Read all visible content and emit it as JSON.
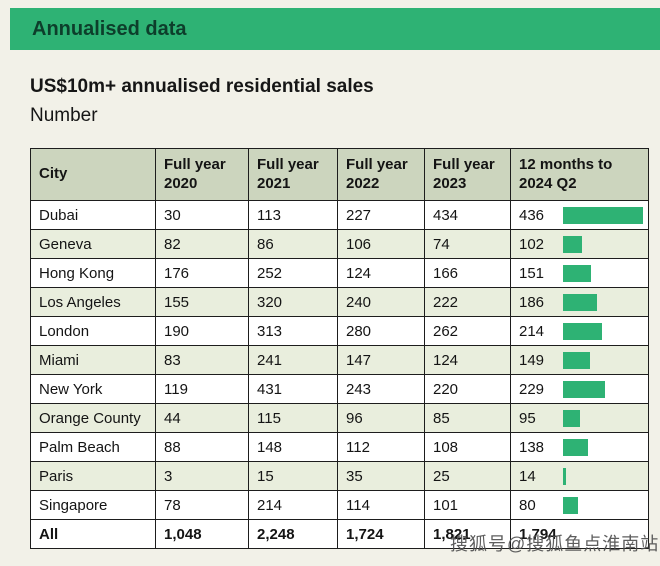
{
  "banner": {
    "title": "Annualised data"
  },
  "heading": {
    "title": "US$10m+ annualised residential sales",
    "subtitle": "Number"
  },
  "chart_data": {
    "type": "table",
    "title": "US$10m+ annualised residential sales",
    "subtitle": "Number",
    "columns": [
      "City",
      "Full year 2020",
      "Full year 2021",
      "Full year 2022",
      "Full year 2023",
      "12 months to 2024 Q2"
    ],
    "rows": [
      {
        "city": "Dubai",
        "values": [
          30,
          113,
          227,
          434,
          436
        ],
        "is_total": false
      },
      {
        "city": "Geneva",
        "values": [
          82,
          86,
          106,
          74,
          102
        ],
        "is_total": false
      },
      {
        "city": "Hong Kong",
        "values": [
          176,
          252,
          124,
          166,
          151
        ],
        "is_total": false
      },
      {
        "city": "Los Angeles",
        "values": [
          155,
          320,
          240,
          222,
          186
        ],
        "is_total": false
      },
      {
        "city": "London",
        "values": [
          190,
          313,
          280,
          262,
          214
        ],
        "is_total": false
      },
      {
        "city": "Miami",
        "values": [
          83,
          241,
          147,
          124,
          149
        ],
        "is_total": false
      },
      {
        "city": "New York",
        "values": [
          119,
          431,
          243,
          220,
          229
        ],
        "is_total": false
      },
      {
        "city": "Orange County",
        "values": [
          44,
          115,
          96,
          85,
          95
        ],
        "is_total": false
      },
      {
        "city": "Palm Beach",
        "values": [
          88,
          148,
          112,
          108,
          138
        ],
        "is_total": false
      },
      {
        "city": "Paris",
        "values": [
          3,
          15,
          35,
          25,
          14
        ],
        "is_total": false
      },
      {
        "city": "Singapore",
        "values": [
          78,
          214,
          114,
          101,
          80
        ],
        "is_total": false
      },
      {
        "city": "All",
        "values": [
          1048,
          2248,
          1724,
          1821,
          1794
        ],
        "is_total": true
      }
    ],
    "bar_column": "12 months to 2024 Q2",
    "bar_max": 436,
    "legend_position": "none",
    "grid": true
  },
  "colors": {
    "accent_green": "#2eb274",
    "banner_text": "#0d3e2b",
    "header_row_bg": "#ccd5be",
    "alt_row_bg": "#e9eedd",
    "page_bg": "#f2f1e8",
    "border": "#1d1d1d"
  },
  "watermark": {
    "text": "搜狐号@搜狐鱼点淮南站"
  }
}
